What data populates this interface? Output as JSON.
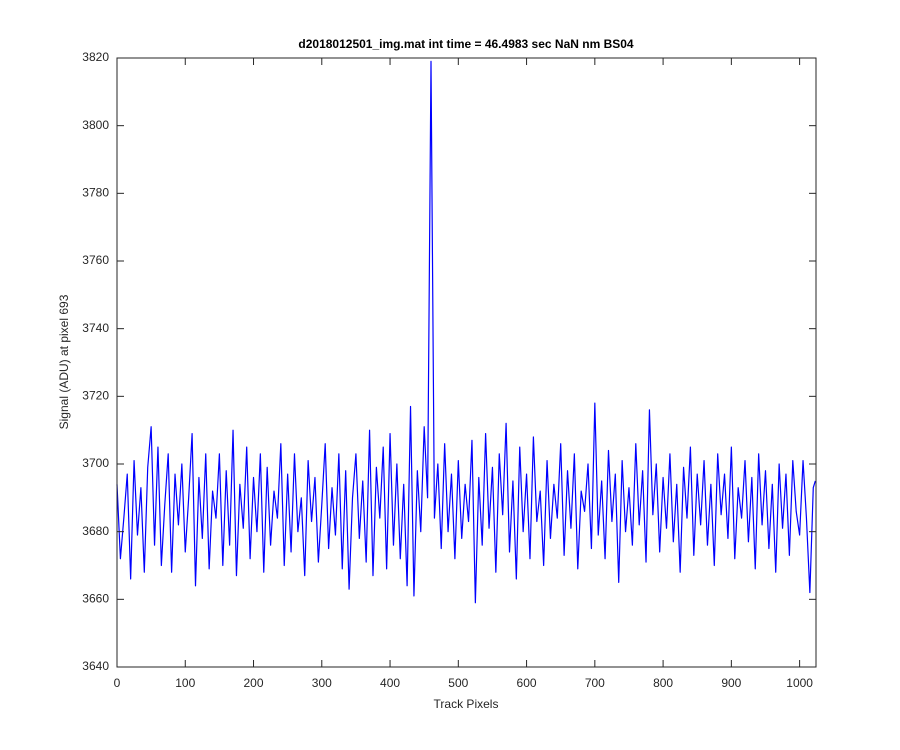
{
  "chart_data": {
    "type": "line",
    "title": "d2018012501_img.mat int time = 46.4983 sec  NaN nm BS04",
    "xlabel": "Track Pixels",
    "ylabel": "Signal (ADU) at pixel 693",
    "color": "#0000ff",
    "xlim": [
      0,
      1024
    ],
    "ylim": [
      3640,
      3820
    ],
    "xticks": [
      0,
      100,
      200,
      300,
      400,
      500,
      600,
      700,
      800,
      900,
      1000
    ],
    "yticks": [
      3640,
      3660,
      3680,
      3700,
      3720,
      3740,
      3760,
      3780,
      3800,
      3820
    ],
    "x": [
      0,
      5,
      10,
      15,
      20,
      25,
      30,
      35,
      40,
      45,
      50,
      55,
      60,
      65,
      70,
      75,
      80,
      85,
      90,
      95,
      100,
      105,
      110,
      115,
      120,
      125,
      130,
      135,
      140,
      145,
      150,
      155,
      160,
      165,
      170,
      175,
      180,
      185,
      190,
      195,
      200,
      205,
      210,
      215,
      220,
      225,
      230,
      235,
      240,
      245,
      250,
      255,
      260,
      265,
      270,
      275,
      280,
      285,
      290,
      295,
      300,
      305,
      310,
      315,
      320,
      325,
      330,
      335,
      340,
      345,
      350,
      355,
      360,
      365,
      370,
      375,
      380,
      385,
      390,
      395,
      400,
      405,
      410,
      415,
      420,
      425,
      430,
      435,
      440,
      445,
      450,
      455,
      460,
      465,
      470,
      475,
      480,
      485,
      490,
      495,
      500,
      505,
      510,
      515,
      520,
      525,
      530,
      535,
      540,
      545,
      550,
      555,
      560,
      565,
      570,
      575,
      580,
      585,
      590,
      595,
      600,
      605,
      610,
      615,
      620,
      625,
      630,
      635,
      640,
      645,
      650,
      655,
      660,
      665,
      670,
      675,
      680,
      685,
      690,
      695,
      700,
      705,
      710,
      715,
      720,
      725,
      730,
      735,
      740,
      745,
      750,
      755,
      760,
      765,
      770,
      775,
      780,
      785,
      790,
      795,
      800,
      805,
      810,
      815,
      820,
      825,
      830,
      835,
      840,
      845,
      850,
      855,
      860,
      865,
      870,
      875,
      880,
      885,
      890,
      895,
      900,
      905,
      910,
      915,
      920,
      925,
      930,
      935,
      940,
      945,
      950,
      955,
      960,
      965,
      970,
      975,
      980,
      985,
      990,
      995,
      1000,
      1005,
      1010,
      1015,
      1020,
      1023
    ],
    "values": [
      3694,
      3672,
      3684,
      3697,
      3666,
      3701,
      3679,
      3693,
      3668,
      3699,
      3711,
      3676,
      3705,
      3670,
      3688,
      3703,
      3668,
      3697,
      3682,
      3700,
      3674,
      3690,
      3709,
      3664,
      3696,
      3678,
      3703,
      3669,
      3692,
      3684,
      3703,
      3670,
      3698,
      3676,
      3710,
      3667,
      3694,
      3681,
      3705,
      3672,
      3696,
      3680,
      3703,
      3668,
      3699,
      3676,
      3692,
      3684,
      3706,
      3670,
      3697,
      3674,
      3703,
      3680,
      3690,
      3667,
      3701,
      3683,
      3696,
      3671,
      3688,
      3706,
      3675,
      3693,
      3679,
      3703,
      3669,
      3698,
      3663,
      3690,
      3703,
      3678,
      3695,
      3671,
      3710,
      3667,
      3699,
      3684,
      3705,
      3669,
      3709,
      3676,
      3700,
      3672,
      3694,
      3664,
      3717,
      3661,
      3698,
      3680,
      3711,
      3690,
      3819,
      3684,
      3700,
      3675,
      3706,
      3680,
      3697,
      3672,
      3701,
      3678,
      3694,
      3683,
      3707,
      3659,
      3696,
      3676,
      3709,
      3681,
      3699,
      3668,
      3703,
      3685,
      3712,
      3674,
      3695,
      3666,
      3705,
      3680,
      3697,
      3672,
      3708,
      3683,
      3692,
      3670,
      3701,
      3678,
      3694,
      3684,
      3706,
      3673,
      3698,
      3681,
      3703,
      3669,
      3692,
      3686,
      3700,
      3675,
      3718,
      3679,
      3695,
      3672,
      3704,
      3683,
      3697,
      3665,
      3701,
      3680,
      3693,
      3676,
      3706,
      3682,
      3698,
      3671,
      3716,
      3685,
      3700,
      3674,
      3696,
      3681,
      3703,
      3677,
      3694,
      3668,
      3699,
      3684,
      3705,
      3673,
      3697,
      3682,
      3701,
      3676,
      3694,
      3670,
      3703,
      3685,
      3697,
      3678,
      3705,
      3672,
      3693,
      3684,
      3701,
      3677,
      3696,
      3669,
      3703,
      3682,
      3698,
      3675,
      3694,
      3668,
      3700,
      3681,
      3697,
      3673,
      3701,
      3686,
      3679,
      3701,
      3684,
      3662,
      3693,
      3695
    ]
  }
}
